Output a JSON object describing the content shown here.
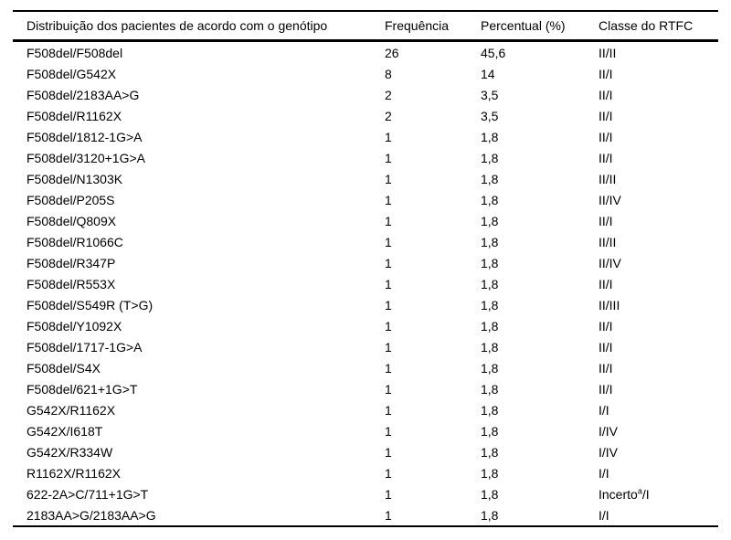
{
  "table": {
    "headers": [
      "Distribuição dos pacientes de acordo com o genótipo",
      "Frequência",
      "Percentual (%)",
      "Classe do RTFC"
    ],
    "rows": [
      [
        "F508del/F508del",
        "26",
        "45,6",
        "II/II"
      ],
      [
        "F508del/G542X",
        "8",
        "14",
        "II/I"
      ],
      [
        "F508del/2183AA>G",
        "2",
        "3,5",
        "II/I"
      ],
      [
        "F508del/R1162X",
        "2",
        "3,5",
        "II/I"
      ],
      [
        "F508del/1812-1G>A",
        "1",
        "1,8",
        "II/I"
      ],
      [
        "F508del/3120+1G>A",
        "1",
        "1,8",
        "II/I"
      ],
      [
        "F508del/N1303K",
        "1",
        "1,8",
        "II/II"
      ],
      [
        "F508del/P205S",
        "1",
        "1,8",
        "II/IV"
      ],
      [
        "F508del/Q809X",
        "1",
        "1,8",
        "II/I"
      ],
      [
        "F508del/R1066C",
        "1",
        "1,8",
        "II/II"
      ],
      [
        "F508del/R347P",
        "1",
        "1,8",
        "II/IV"
      ],
      [
        "F508del/R553X",
        "1",
        "1,8",
        "II/I"
      ],
      [
        "F508del/S549R (T>G)",
        "1",
        "1,8",
        "II/III"
      ],
      [
        "F508del/Y1092X",
        "1",
        "1,8",
        "II/I"
      ],
      [
        "F508del/1717-1G>A",
        "1",
        "1,8",
        "II/I"
      ],
      [
        "F508del/S4X",
        "1",
        "1,8",
        "II/I"
      ],
      [
        "F508del/621+1G>T",
        "1",
        "1,8",
        "II/I"
      ],
      [
        "G542X/R1162X",
        "1",
        "1,8",
        "I/I"
      ],
      [
        "G542X/I618T",
        "1",
        "1,8",
        "I/IV"
      ],
      [
        "G542X/R334W",
        "1",
        "1,8",
        "I/IV"
      ],
      [
        "R1162X/R1162X",
        "1",
        "1,8",
        "I/I"
      ],
      [
        "622-2A>C/711+1G>T",
        "1",
        "1,8",
        "Incerto^a/I"
      ],
      [
        "2183AA>G/2183AA>G",
        "1",
        "1,8",
        "I/I"
      ]
    ]
  },
  "colors": {
    "text": "#000000",
    "border": "#000000",
    "background": "#ffffff"
  }
}
